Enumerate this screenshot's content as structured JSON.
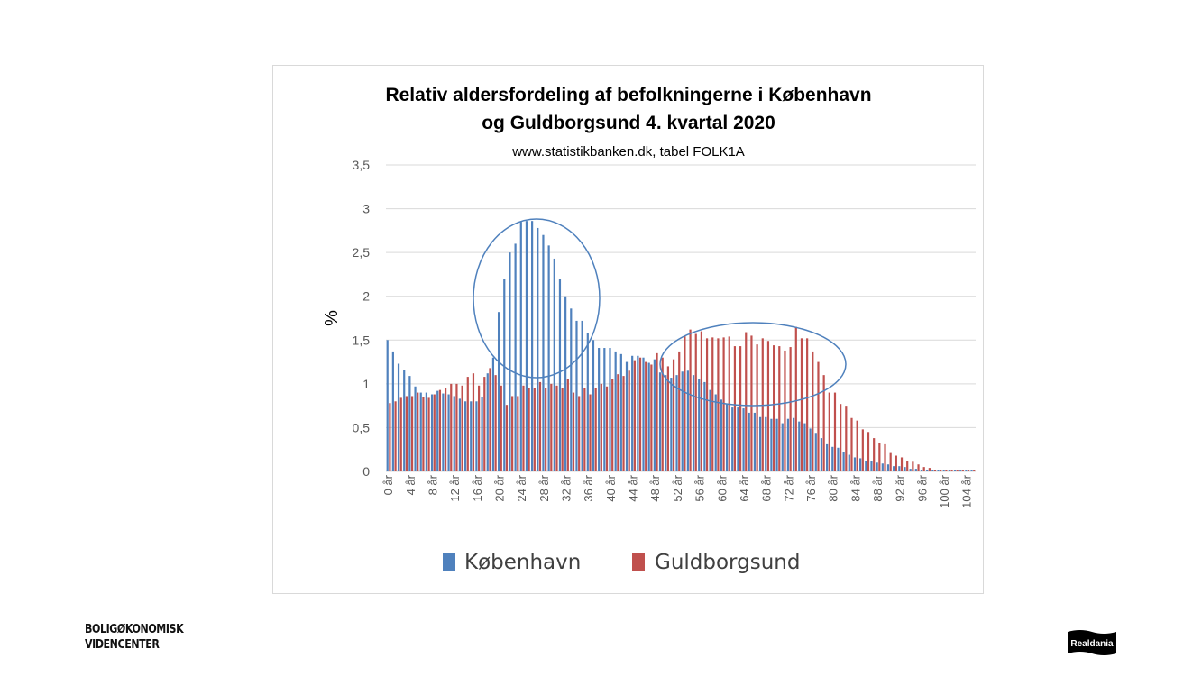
{
  "chart_data": {
    "type": "bar",
    "title_line1": "Relativ aldersfordeling af befolkningerne i København",
    "title_line2": "og Guldborgsund 4. kvartal 2020",
    "subtitle": "www.statistikbanken.dk, tabel FOLK1A",
    "ylabel": "%",
    "xlabel": "",
    "ylim": [
      0,
      3.5
    ],
    "yticks": [
      0,
      0.5,
      1,
      1.5,
      2,
      2.5,
      3,
      3.5
    ],
    "ytick_labels": [
      "0",
      "0,5",
      "1",
      "1,5",
      "2",
      "2,5",
      "3",
      "3,5"
    ],
    "grid": true,
    "legend_position": "bottom",
    "x_tick_every": 4,
    "categories_unit": "år",
    "ages_from": 0,
    "ages_to": 105,
    "series": [
      {
        "name": "København",
        "color": "#4F81BD",
        "values": [
          1.5,
          1.37,
          1.23,
          1.16,
          1.09,
          0.97,
          0.9,
          0.9,
          0.88,
          0.92,
          0.89,
          0.88,
          0.86,
          0.83,
          0.8,
          0.8,
          0.8,
          0.85,
          1.12,
          1.3,
          1.82,
          2.2,
          2.5,
          2.6,
          2.85,
          2.86,
          2.86,
          2.78,
          2.7,
          2.58,
          2.43,
          2.2,
          2.0,
          1.86,
          1.72,
          1.72,
          1.58,
          1.5,
          1.41,
          1.41,
          1.41,
          1.37,
          1.34,
          1.25,
          1.32,
          1.32,
          1.3,
          1.24,
          1.28,
          1.13,
          1.1,
          1.07,
          1.1,
          1.14,
          1.15,
          1.1,
          1.06,
          1.02,
          0.93,
          0.88,
          0.82,
          0.77,
          0.73,
          0.73,
          0.72,
          0.67,
          0.67,
          0.62,
          0.62,
          0.6,
          0.6,
          0.55,
          0.6,
          0.61,
          0.57,
          0.55,
          0.49,
          0.44,
          0.38,
          0.31,
          0.28,
          0.27,
          0.22,
          0.19,
          0.16,
          0.15,
          0.12,
          0.12,
          0.1,
          0.09,
          0.08,
          0.06,
          0.06,
          0.05,
          0.03,
          0.03,
          0.02,
          0.02,
          0.015,
          0.015,
          0.01,
          0.01,
          0.01,
          0.01,
          0.01,
          0.01
        ]
      },
      {
        "name": "Guldborgsund",
        "color": "#C0504D",
        "values": [
          0.78,
          0.8,
          0.84,
          0.86,
          0.86,
          0.9,
          0.85,
          0.84,
          0.88,
          0.93,
          0.95,
          1.0,
          1.0,
          0.98,
          1.08,
          1.12,
          0.98,
          1.08,
          1.18,
          1.1,
          0.98,
          0.76,
          0.86,
          0.86,
          0.98,
          0.95,
          0.95,
          1.02,
          0.95,
          1.0,
          0.98,
          0.95,
          1.05,
          0.9,
          0.86,
          0.95,
          0.88,
          0.95,
          1.0,
          0.97,
          1.06,
          1.11,
          1.09,
          1.15,
          1.27,
          1.3,
          1.25,
          1.22,
          1.35,
          1.3,
          1.2,
          1.28,
          1.37,
          1.55,
          1.62,
          1.57,
          1.6,
          1.52,
          1.53,
          1.52,
          1.53,
          1.54,
          1.43,
          1.43,
          1.59,
          1.55,
          1.45,
          1.52,
          1.49,
          1.44,
          1.43,
          1.38,
          1.42,
          1.65,
          1.52,
          1.52,
          1.37,
          1.25,
          1.1,
          0.9,
          0.9,
          0.77,
          0.75,
          0.61,
          0.58,
          0.48,
          0.45,
          0.38,
          0.32,
          0.31,
          0.21,
          0.18,
          0.16,
          0.12,
          0.11,
          0.08,
          0.05,
          0.04,
          0.02,
          0.02,
          0.02,
          0.01,
          0.01,
          0.01,
          0.01,
          0.01
        ]
      }
    ],
    "annotations": [
      {
        "type": "ellipse",
        "color": "#4F81BD",
        "around": "København ages 18-36"
      },
      {
        "type": "ellipse",
        "color": "#4F81BD",
        "around": "Guldborgsund ages 52-80"
      }
    ]
  },
  "footer": {
    "left_logo_line1": "BOLIGØKONOMISK",
    "left_logo_line2": "VIDENCENTER",
    "right_logo": "Realdania"
  }
}
